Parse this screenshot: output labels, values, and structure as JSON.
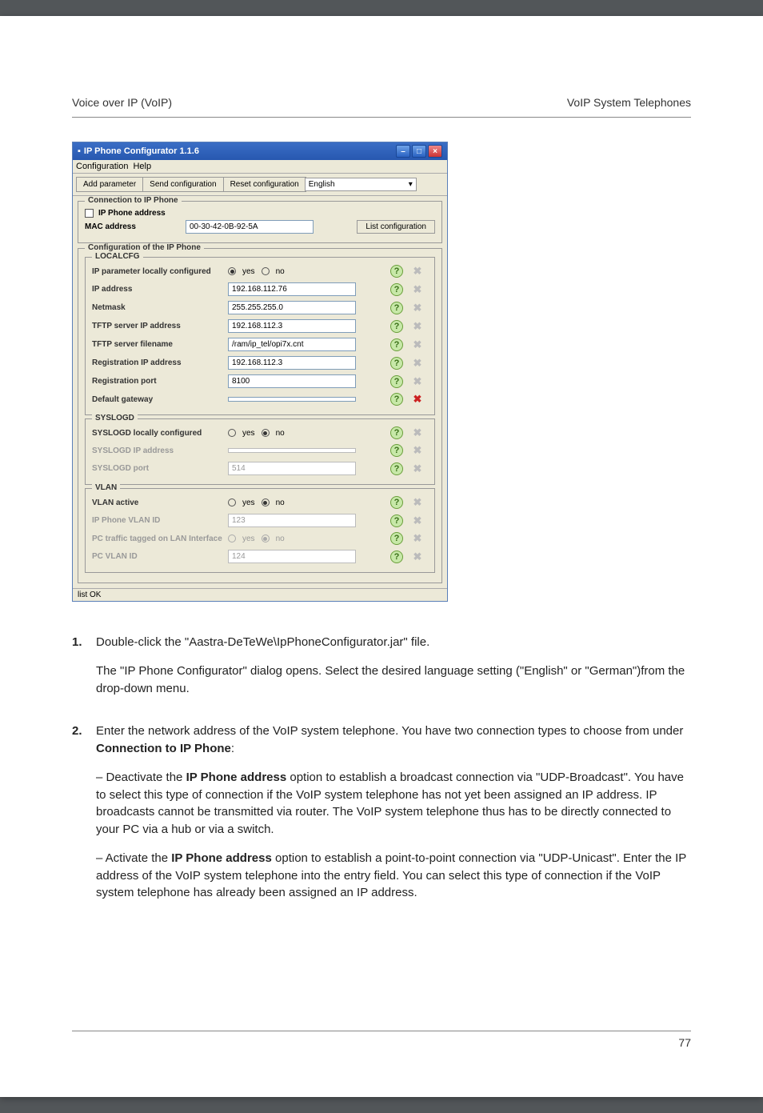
{
  "header": {
    "left": "Voice over IP (VoIP)",
    "right": "VoIP System Telephones"
  },
  "app": {
    "title": "IP Phone Configurator 1.1.6",
    "menu": {
      "configuration": "Configuration",
      "help": "Help"
    },
    "toolbar": {
      "add": "Add parameter",
      "send": "Send configuration",
      "reset": "Reset configuration",
      "language": "English"
    },
    "connection": {
      "title": "Connection to IP Phone",
      "ip_phone_address_label": "IP Phone address",
      "mac_label": "MAC address",
      "mac_value": "00-30-42-0B-92-5A",
      "list_btn": "List configuration"
    },
    "config": {
      "title": "Configuration of the IP Phone",
      "localcfg": {
        "title": "LOCALCFG",
        "rows": [
          {
            "label": "IP parameter locally configured",
            "type": "radio",
            "yes": true,
            "enabled": true,
            "del": false
          },
          {
            "label": "IP address",
            "type": "input",
            "value": "192.168.112.76",
            "enabled": true,
            "del": false
          },
          {
            "label": "Netmask",
            "type": "input",
            "value": "255.255.255.0",
            "enabled": true,
            "del": false
          },
          {
            "label": "TFTP server IP address",
            "type": "input",
            "value": "192.168.112.3",
            "enabled": true,
            "del": false
          },
          {
            "label": "TFTP server filename",
            "type": "input",
            "value": "/ram/ip_tel/opi7x.cnt",
            "enabled": true,
            "del": false
          },
          {
            "label": "Registration IP address",
            "type": "input",
            "value": "192.168.112.3",
            "enabled": true,
            "del": false
          },
          {
            "label": "Registration port",
            "type": "input",
            "value": "8100",
            "enabled": true,
            "del": false
          },
          {
            "label": "Default gateway",
            "type": "input",
            "value": "",
            "enabled": true,
            "del": true
          }
        ]
      },
      "syslogd": {
        "title": "SYSLOGD",
        "rows": [
          {
            "label": "SYSLOGD locally configured",
            "type": "radio",
            "yes": false,
            "enabled": true,
            "del": false
          },
          {
            "label": "SYSLOGD IP address",
            "type": "input",
            "value": "",
            "enabled": false,
            "del": false
          },
          {
            "label": "SYSLOGD port",
            "type": "input",
            "value": "514",
            "enabled": false,
            "del": false
          }
        ]
      },
      "vlan": {
        "title": "VLAN",
        "rows": [
          {
            "label": "VLAN active",
            "type": "radio",
            "yes": false,
            "enabled": true,
            "del": false
          },
          {
            "label": "IP Phone VLAN ID",
            "type": "input",
            "value": "123",
            "enabled": false,
            "del": false
          },
          {
            "label": "PC traffic tagged on LAN Interface",
            "type": "radio",
            "yes": false,
            "enabled": false,
            "del": false
          },
          {
            "label": "PC VLAN ID",
            "type": "input",
            "value": "124",
            "enabled": false,
            "del": false
          }
        ]
      }
    },
    "status": "list OK",
    "radio_labels": {
      "yes": "yes",
      "no": "no"
    }
  },
  "body": {
    "step1": {
      "num": "1.",
      "p1": "Double-click the \"Aastra-DeTeWe\\IpPhoneConfigurator.jar\" file.",
      "p2": "The \"IP Phone Configurator\" dialog opens. Select the desired language setting (\"English\" or \"German\")from the drop-down menu."
    },
    "step2": {
      "num": "2.",
      "p1_a": "Enter the network address of the VoIP system telephone. You have two connection types to choose from under ",
      "p1_b": "Connection to IP Phone",
      "p1_c": ":",
      "p2_a": "– Deactivate the ",
      "p2_b": "IP Phone address",
      "p2_c": " option to establish a broadcast connection via \"UDP-Broadcast\". You have to select this type of connection if the VoIP system telephone has not yet been assigned an IP address. IP broadcasts cannot be transmitted via router. The VoIP system telephone thus has to be directly connected to your PC via a hub or via a switch.",
      "p3_a": "– Activate the ",
      "p3_b": "IP Phone address",
      "p3_c": " option to establish a point-to-point connection via \"UDP-Unicast\". Enter the IP address of the VoIP system telephone into the entry field. You can select this type of connection if the VoIP system telephone has already been assigned an IP address."
    }
  },
  "page_number": "77",
  "colors": {
    "page_bg": "#ffffff",
    "titlebar_start": "#3a6ec5",
    "titlebar_end": "#2758b0",
    "win_bg": "#ece9d8",
    "help_border": "#6a9f3a",
    "help_bg": "#c7e8a8",
    "help_fg": "#3a6f18",
    "del_active": "#cc2222",
    "input_border": "#7f9db9"
  }
}
